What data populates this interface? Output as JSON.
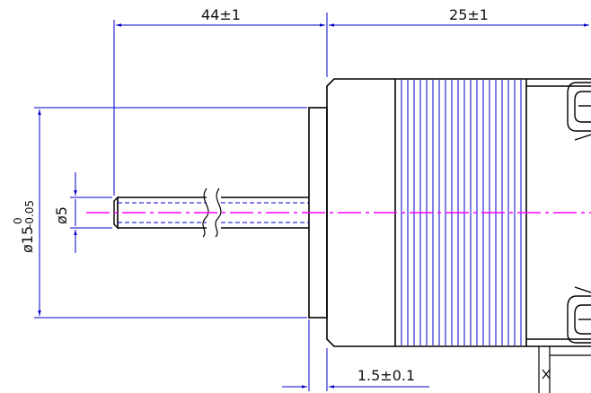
{
  "dimensions": {
    "shaft_length": "44±1",
    "body_length": "25±1",
    "pilot_height": "1.5±0.1",
    "shaft_diameter": "ø5",
    "pilot_diameter_main": "ø15",
    "pilot_tol_upper": "0",
    "pilot_tol_lower": "-0.05"
  },
  "colors": {
    "outline": "#000000",
    "dimension": "#0000cc",
    "centerline": "#ff00ff",
    "text": "#111111"
  }
}
